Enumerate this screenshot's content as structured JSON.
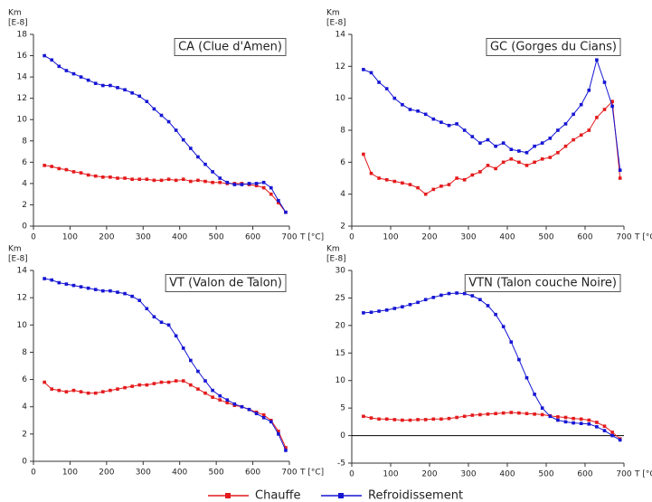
{
  "chart_data": [
    {
      "type": "line",
      "title": "CA (Clue d'Amen)",
      "y_label": "Km",
      "y_unit": "[E-8]",
      "x_label": "T [°C]",
      "x": [
        30,
        50,
        70,
        90,
        110,
        130,
        150,
        170,
        190,
        210,
        230,
        250,
        270,
        290,
        310,
        330,
        350,
        370,
        390,
        410,
        430,
        450,
        470,
        490,
        510,
        530,
        550,
        570,
        590,
        610,
        630,
        650,
        670,
        690
      ],
      "xlim": [
        0,
        700
      ],
      "xticks": [
        0,
        100,
        200,
        300,
        400,
        500,
        600,
        700
      ],
      "ylim": [
        0,
        18
      ],
      "yticks": [
        0,
        2,
        4,
        6,
        8,
        10,
        12,
        14,
        16,
        18
      ],
      "series": [
        {
          "color": "#e41a1c",
          "values": [
            5.7,
            5.6,
            5.4,
            5.3,
            5.1,
            5.0,
            4.8,
            4.7,
            4.6,
            4.6,
            4.5,
            4.5,
            4.4,
            4.4,
            4.4,
            4.3,
            4.3,
            4.4,
            4.3,
            4.4,
            4.2,
            4.3,
            4.2,
            4.1,
            4.1,
            4.0,
            4.0,
            4.0,
            3.9,
            3.8,
            3.6,
            3.0,
            2.2,
            1.3
          ]
        },
        {
          "color": "#1515d4",
          "values": [
            16.0,
            15.6,
            15.0,
            14.6,
            14.3,
            14.0,
            13.7,
            13.4,
            13.2,
            13.2,
            13.0,
            12.8,
            12.5,
            12.2,
            11.7,
            11.0,
            10.4,
            9.8,
            9.0,
            8.1,
            7.3,
            6.5,
            5.8,
            5.1,
            4.5,
            4.1,
            3.9,
            3.9,
            4.0,
            4.0,
            4.1,
            3.6,
            2.4,
            1.3
          ]
        }
      ]
    },
    {
      "type": "line",
      "title": "GC (Gorges du Cians)",
      "y_label": "Km",
      "y_unit": "[E-8]",
      "x_label": "T [°C]",
      "x": [
        30,
        50,
        70,
        90,
        110,
        130,
        150,
        170,
        190,
        210,
        230,
        250,
        270,
        290,
        310,
        330,
        350,
        370,
        390,
        410,
        430,
        450,
        470,
        490,
        510,
        530,
        550,
        570,
        590,
        610,
        630,
        650,
        670,
        690
      ],
      "xlim": [
        0,
        700
      ],
      "xticks": [
        0,
        100,
        200,
        300,
        400,
        500,
        600,
        700
      ],
      "ylim": [
        2,
        14
      ],
      "yticks": [
        2,
        4,
        6,
        8,
        10,
        12,
        14
      ],
      "series": [
        {
          "color": "#e41a1c",
          "values": [
            6.5,
            5.3,
            5.0,
            4.9,
            4.8,
            4.7,
            4.6,
            4.4,
            4.0,
            4.3,
            4.5,
            4.6,
            5.0,
            4.9,
            5.2,
            5.4,
            5.8,
            5.6,
            6.0,
            6.2,
            6.0,
            5.8,
            6.0,
            6.2,
            6.3,
            6.6,
            7.0,
            7.4,
            7.7,
            8.0,
            8.8,
            9.3,
            9.8,
            5.0
          ]
        },
        {
          "color": "#1515d4",
          "values": [
            11.8,
            11.6,
            11.0,
            10.6,
            10.0,
            9.6,
            9.3,
            9.2,
            9.0,
            8.7,
            8.5,
            8.3,
            8.4,
            8.0,
            7.6,
            7.2,
            7.4,
            7.0,
            7.2,
            6.8,
            6.7,
            6.6,
            7.0,
            7.2,
            7.5,
            8.0,
            8.4,
            9.0,
            9.6,
            10.5,
            12.4,
            11.0,
            9.5,
            5.5
          ]
        }
      ]
    },
    {
      "type": "line",
      "title": "VT (Valon de Talon)",
      "y_label": "Km",
      "y_unit": "[E-8]",
      "x_label": "T [°C]",
      "x": [
        30,
        50,
        70,
        90,
        110,
        130,
        150,
        170,
        190,
        210,
        230,
        250,
        270,
        290,
        310,
        330,
        350,
        370,
        390,
        410,
        430,
        450,
        470,
        490,
        510,
        530,
        550,
        570,
        590,
        610,
        630,
        650,
        670,
        690
      ],
      "xlim": [
        0,
        700
      ],
      "xticks": [
        0,
        100,
        200,
        300,
        400,
        500,
        600,
        700
      ],
      "ylim": [
        0,
        14
      ],
      "yticks": [
        0,
        2,
        4,
        6,
        8,
        10,
        12,
        14
      ],
      "series": [
        {
          "color": "#e41a1c",
          "values": [
            5.8,
            5.3,
            5.2,
            5.1,
            5.2,
            5.1,
            5.0,
            5.0,
            5.1,
            5.2,
            5.3,
            5.4,
            5.5,
            5.6,
            5.6,
            5.7,
            5.8,
            5.8,
            5.9,
            5.9,
            5.6,
            5.3,
            5.0,
            4.7,
            4.5,
            4.3,
            4.1,
            4.0,
            3.8,
            3.6,
            3.4,
            3.0,
            2.2,
            1.0
          ]
        },
        {
          "color": "#1515d4",
          "values": [
            13.4,
            13.3,
            13.1,
            13.0,
            12.9,
            12.8,
            12.7,
            12.6,
            12.5,
            12.5,
            12.4,
            12.3,
            12.1,
            11.8,
            11.2,
            10.6,
            10.2,
            10.0,
            9.2,
            8.3,
            7.4,
            6.6,
            5.9,
            5.2,
            4.8,
            4.5,
            4.2,
            4.0,
            3.8,
            3.5,
            3.2,
            2.9,
            2.0,
            0.8
          ]
        }
      ]
    },
    {
      "type": "line",
      "title": "VTN (Talon couche Noire)",
      "y_label": "Km",
      "y_unit": "[E-8]",
      "x_label": "T [°C]",
      "x": [
        30,
        50,
        70,
        90,
        110,
        130,
        150,
        170,
        190,
        210,
        230,
        250,
        270,
        290,
        310,
        330,
        350,
        370,
        390,
        410,
        430,
        450,
        470,
        490,
        510,
        530,
        550,
        570,
        590,
        610,
        630,
        650,
        670,
        690
      ],
      "xlim": [
        0,
        700
      ],
      "xticks": [
        0,
        100,
        200,
        300,
        400,
        500,
        600,
        700
      ],
      "ylim": [
        -5,
        30
      ],
      "yticks": [
        -5,
        0,
        5,
        10,
        15,
        20,
        25,
        30
      ],
      "zero_line": true,
      "series": [
        {
          "color": "#e41a1c",
          "values": [
            3.5,
            3.2,
            3.0,
            3.0,
            2.9,
            2.8,
            2.8,
            2.9,
            2.9,
            3.0,
            3.0,
            3.1,
            3.3,
            3.5,
            3.7,
            3.8,
            3.9,
            4.0,
            4.1,
            4.2,
            4.1,
            4.0,
            3.9,
            3.8,
            3.6,
            3.4,
            3.3,
            3.1,
            3.0,
            2.8,
            2.4,
            1.7,
            0.6,
            -0.6
          ]
        },
        {
          "color": "#1515d4",
          "values": [
            22.3,
            22.4,
            22.6,
            22.8,
            23.1,
            23.4,
            23.8,
            24.2,
            24.7,
            25.1,
            25.5,
            25.8,
            25.9,
            25.8,
            25.4,
            24.7,
            23.6,
            22.0,
            19.8,
            17.0,
            13.8,
            10.5,
            7.5,
            5.0,
            3.5,
            2.8,
            2.5,
            2.3,
            2.2,
            2.1,
            1.6,
            0.9,
            0.0,
            -0.8
          ]
        }
      ]
    }
  ],
  "legend": [
    {
      "name": "Chauffe",
      "color": "#e41a1c"
    },
    {
      "name": "Refroidissement",
      "color": "#1515d4"
    }
  ]
}
